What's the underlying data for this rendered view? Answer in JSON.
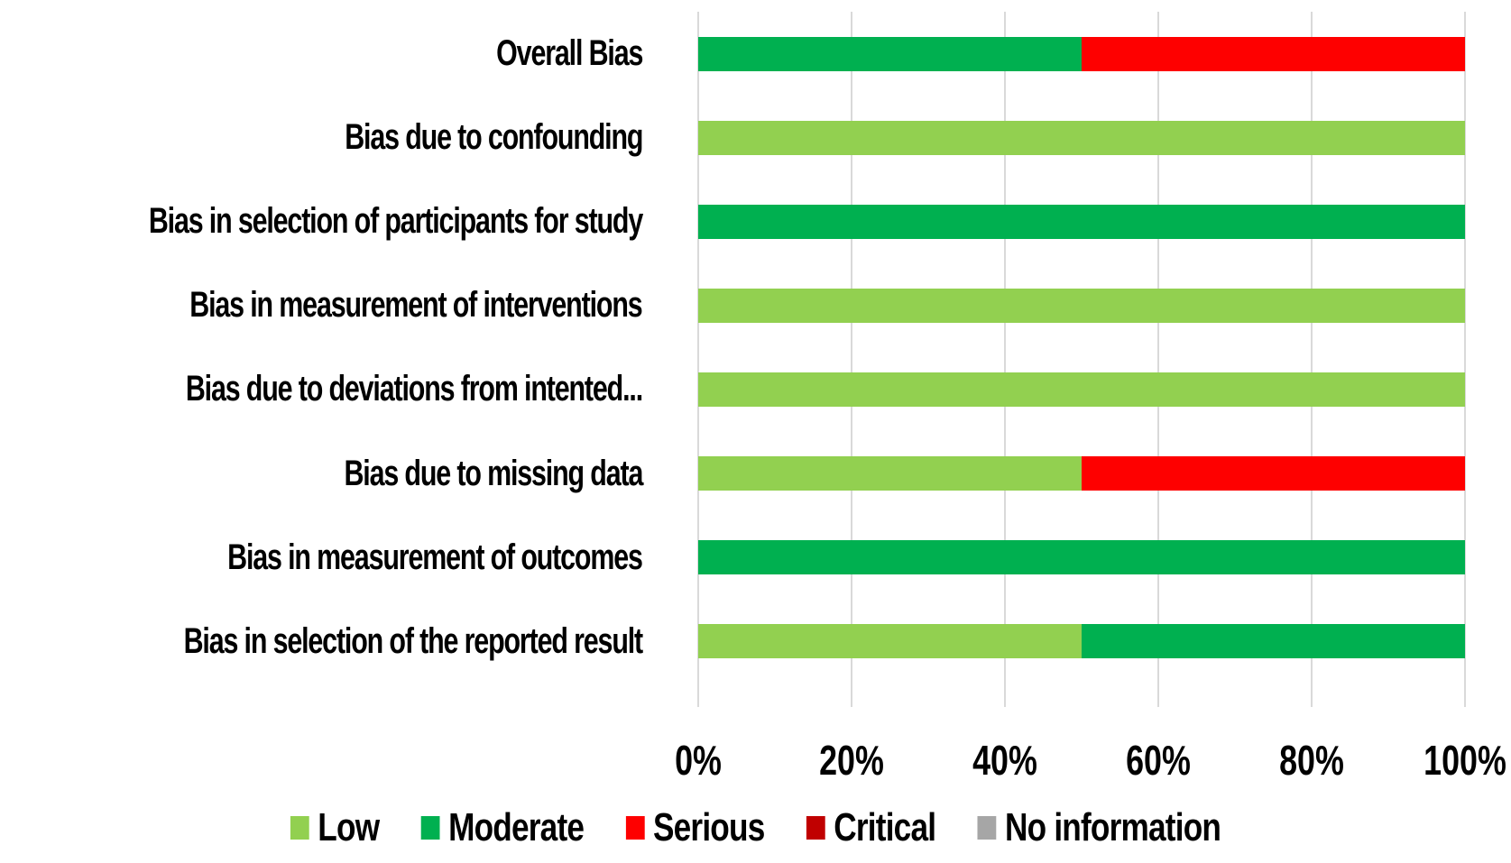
{
  "chart_data": {
    "type": "bar",
    "orientation": "horizontal",
    "stacked": true,
    "title": "",
    "xlabel": "",
    "ylabel": "",
    "xlim": [
      0,
      100
    ],
    "grid": "vertical",
    "legend_position": "bottom",
    "categories": [
      "Overall Bias",
      "Bias due to confounding",
      "Bias in selection of participants for study",
      "Bias in measurement of interventions",
      "Bias due to deviations from intented...",
      "Bias due to missing data",
      "Bias in measurement of outcomes",
      "Bias in selection of the reported result"
    ],
    "series": [
      {
        "name": "Low",
        "color": "#92d050",
        "values": [
          0,
          100,
          0,
          100,
          100,
          50,
          0,
          50
        ]
      },
      {
        "name": "Moderate",
        "color": "#00b050",
        "values": [
          50,
          0,
          100,
          0,
          0,
          0,
          100,
          50
        ]
      },
      {
        "name": "Serious",
        "color": "#fe0000",
        "values": [
          50,
          0,
          0,
          0,
          0,
          50,
          0,
          0
        ]
      },
      {
        "name": "Critical",
        "color": "#c00000",
        "values": [
          0,
          0,
          0,
          0,
          0,
          0,
          0,
          0
        ]
      },
      {
        "name": "No information",
        "color": "#a6a6a6",
        "values": [
          0,
          0,
          0,
          0,
          0,
          0,
          0,
          0
        ]
      }
    ],
    "x_ticks": [
      "0%",
      "20%",
      "40%",
      "60%",
      "80%",
      "100%"
    ],
    "colors": {
      "gridline": "#d9d9d9",
      "text": "#000000",
      "background": "#ffffff"
    }
  }
}
